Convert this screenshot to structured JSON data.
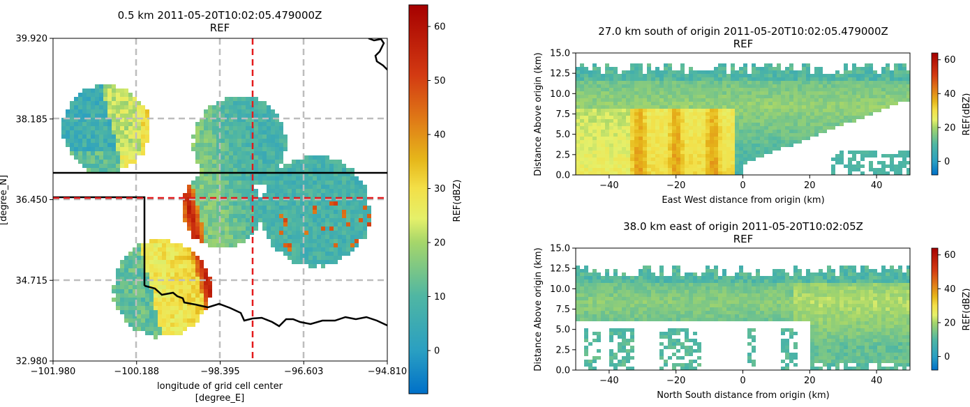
{
  "chart_data": [
    {
      "type": "heatmap",
      "panel": "map",
      "title": "0.5 km 2011-05-20T10:02:05.479000Z",
      "subtitle": "REF",
      "xlabel": "longitude of grid cell center",
      "xlabel_units": "[degree_E]",
      "ylabel": "[degree_N]",
      "xticks": [
        "−101.980",
        "−100.188",
        "−98.395",
        "−96.603",
        "−94.810"
      ],
      "yticks": [
        "39.920",
        "38.185",
        "36.450",
        "34.715",
        "32.980"
      ],
      "xlim": [
        -101.98,
        -94.81
      ],
      "ylim": [
        32.98,
        39.92
      ],
      "crosshair": {
        "lon": -97.68,
        "lat": 36.45
      },
      "colorbar": {
        "label": "REF(dBZ)",
        "ticks": [
          "0",
          "10",
          "20",
          "30",
          "40",
          "50",
          "60"
        ],
        "range": [
          -8,
          64
        ]
      }
    },
    {
      "type": "heatmap",
      "panel": "cross-section-ew",
      "title": "27.0 km south of origin 2011-05-20T10:02:05.479000Z",
      "subtitle": "REF",
      "xlabel": "East West distance from origin (km)",
      "ylabel": "Distance Above origin (km)",
      "xticks": [
        "−40",
        "−20",
        "0",
        "20",
        "40"
      ],
      "yticks": [
        "15.0",
        "12.5",
        "10.0",
        "7.5",
        "5.0",
        "2.5",
        "0.0"
      ],
      "xlim": [
        -50,
        50
      ],
      "ylim": [
        0,
        15
      ],
      "colorbar": {
        "label": "REF(dBZ)",
        "ticks": [
          "60",
          "40",
          "20",
          "0"
        ],
        "range": [
          -8,
          64
        ]
      }
    },
    {
      "type": "heatmap",
      "panel": "cross-section-ns",
      "title": "38.0 km east of origin 2011-05-20T10:02:05Z",
      "subtitle": "REF",
      "xlabel": "North South distance from origin (km)",
      "ylabel": "Distance Above origin (km)",
      "xticks": [
        "−40",
        "−20",
        "0",
        "20",
        "40"
      ],
      "yticks": [
        "15.0",
        "12.5",
        "10.0",
        "7.5",
        "5.0",
        "2.5",
        "0.0"
      ],
      "xlim": [
        -50,
        50
      ],
      "ylim": [
        0,
        15
      ],
      "colorbar": {
        "label": "REF(dBZ)",
        "ticks": [
          "60",
          "40",
          "20",
          "0"
        ],
        "range": [
          -8,
          64
        ]
      }
    }
  ]
}
